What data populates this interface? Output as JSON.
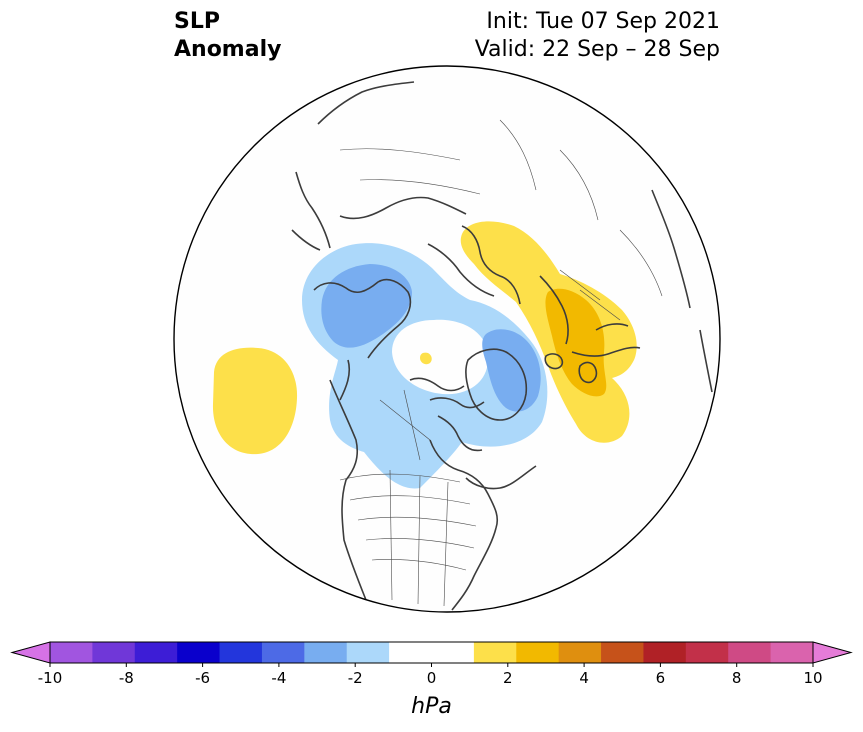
{
  "title": {
    "left_line1": "SLP",
    "left_line2": "Anomaly",
    "right_line1": "Init: Tue 07 Sep 2021",
    "right_line2": "Valid: 22 Sep – 28 Sep"
  },
  "colorbar": {
    "unit": "hPa",
    "min": -10,
    "max": 10,
    "step": 1,
    "ticks": [
      "-10",
      "-8",
      "-6",
      "-4",
      "-2",
      "0",
      "2",
      "4",
      "6",
      "8",
      "10"
    ],
    "extend": "both",
    "colors": [
      "#d672e6",
      "#a155e0",
      "#7037d8",
      "#3d1dd6",
      "#0a00cc",
      "#2336dc",
      "#4d6ae6",
      "#78adf0",
      "#acd8fa",
      "#ffffff",
      "#ffffff",
      "#fde04a",
      "#f2b900",
      "#df8f0f",
      "#c6521a",
      "#b02126",
      "#c23049",
      "#cf4a85",
      "#da63ad",
      "#e57cd8"
    ]
  },
  "map": {
    "projection": "north-polar-stereographic",
    "background": "#fefefe",
    "coastline_color": "#3c3c3c",
    "anomaly_regions": [
      {
        "region": "northeast-pacific",
        "value": "+1 to +2 hPa",
        "color": "#fde04a"
      },
      {
        "region": "northwest-canada-alaska",
        "value": "-1 to -3 hPa",
        "color": "#78adf0"
      },
      {
        "region": "greenland",
        "value": "-1 to -3 hPa",
        "color": "#78adf0"
      },
      {
        "region": "scandinavia-baltic",
        "value": "+1 to +3 hPa",
        "color": "#f2b900"
      },
      {
        "region": "eastern-europe",
        "value": "+1 to +3 hPa",
        "color": "#f2b900"
      },
      {
        "region": "north-pole",
        "value": "+1 to +2 hPa",
        "color": "#fde04a"
      }
    ]
  }
}
